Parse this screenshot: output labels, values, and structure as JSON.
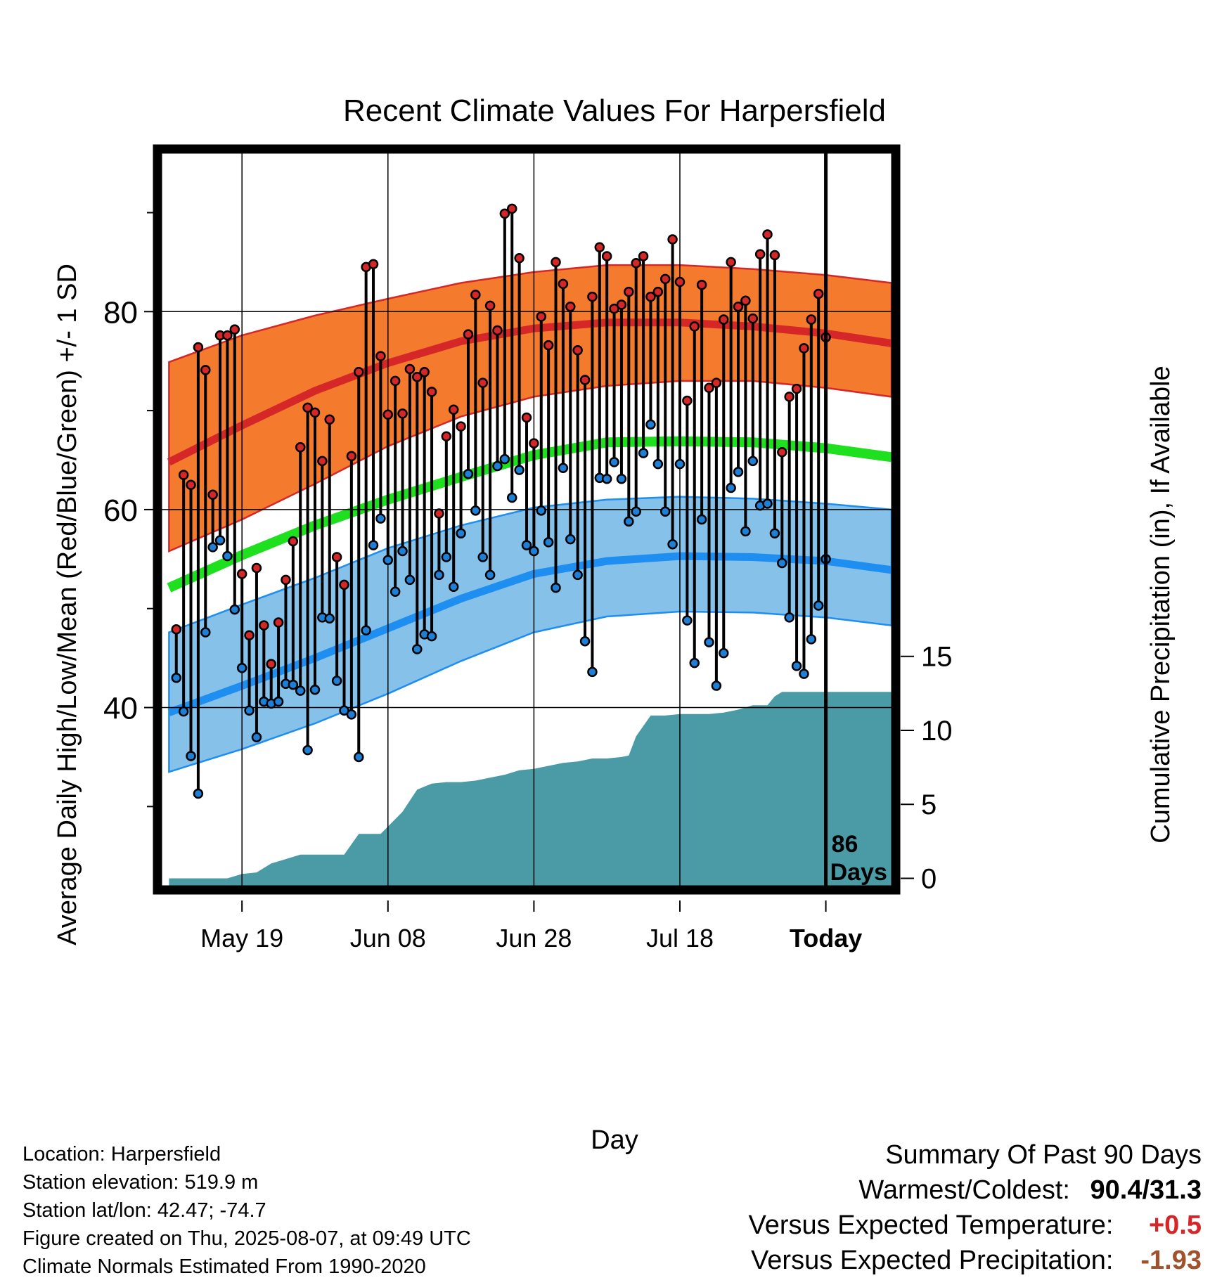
{
  "chart_data": {
    "type": "line",
    "title": "Recent Climate Values For Harpersfield",
    "xlabel": "Day",
    "ylabel": "Average Daily High/Low/Mean (Red/Blue/Green) +/- 1 SD",
    "y2label": "Cumulative Precipitation (in), If Available",
    "x_tick_labels": [
      "May 19",
      "Jun 08",
      "Jun 28",
      "Jul 18",
      "Today"
    ],
    "x_tick_days": [
      -80,
      -60,
      -40,
      -20,
      0
    ],
    "xlim": [
      -91,
      9
    ],
    "ylim": [
      22,
      96
    ],
    "y_ticks": [
      40,
      60,
      80
    ],
    "y_minor_ticks": [
      30,
      50,
      70,
      90
    ],
    "y2lim": [
      -0.5,
      49
    ],
    "y2_ticks": [
      0,
      5,
      10,
      15
    ],
    "grid": true,
    "today_label": [
      "86",
      "Days"
    ],
    "series": [
      {
        "name": "Normal High +/- 1 SD",
        "color": "#f47a2e",
        "x": [
          -90,
          -80,
          -70,
          -60,
          -50,
          -40,
          -30,
          -20,
          -10,
          0,
          9
        ],
        "mean": [
          64.8,
          68.5,
          72.0,
          74.8,
          77.0,
          78.3,
          78.9,
          78.9,
          78.5,
          77.8,
          76.8
        ],
        "upper": [
          74.9,
          77.6,
          79.6,
          81.3,
          82.9,
          84.0,
          84.7,
          84.7,
          84.3,
          83.7,
          82.9
        ],
        "lower": [
          55.8,
          59.0,
          62.6,
          66.4,
          69.4,
          71.4,
          72.5,
          73.0,
          73.0,
          72.3,
          71.4
        ]
      },
      {
        "name": "Normal Mean",
        "color": "#1ee01e",
        "x": [
          -90,
          -80,
          -70,
          -60,
          -50,
          -40,
          -30,
          -20,
          -10,
          0,
          9
        ],
        "mean": [
          52.1,
          55.4,
          58.4,
          61.0,
          63.3,
          65.5,
          66.8,
          66.9,
          66.8,
          66.2,
          65.3
        ]
      },
      {
        "name": "Normal Low +/- 1 SD",
        "color": "#1e8ef0",
        "x": [
          -90,
          -80,
          -70,
          -60,
          -50,
          -40,
          -30,
          -20,
          -10,
          0,
          9
        ],
        "mean": [
          39.5,
          42.2,
          45.0,
          48.0,
          51.0,
          53.5,
          54.8,
          55.3,
          55.2,
          54.8,
          53.9
        ],
        "upper": [
          47.6,
          50.4,
          53.1,
          56.1,
          58.4,
          60.2,
          61.0,
          61.3,
          61.1,
          60.6,
          60.0
        ],
        "lower": [
          33.5,
          35.8,
          38.4,
          41.4,
          44.7,
          47.6,
          49.2,
          49.7,
          49.6,
          49.1,
          48.3
        ]
      },
      {
        "name": "Cumulative Precipitation",
        "color": "#4a9ba5",
        "x": [
          -90,
          -82,
          -80,
          -78,
          -76,
          -74,
          -72,
          -70,
          -68,
          -66,
          -64,
          -62,
          -61,
          -60,
          -58,
          -56,
          -54,
          -52,
          -50,
          -48,
          -46,
          -44,
          -42,
          -40,
          -38,
          -36,
          -34,
          -32,
          -30,
          -28,
          -27,
          -26,
          -24,
          -22,
          -20,
          -18,
          -16,
          -14,
          -12,
          -10,
          -8,
          -7,
          -6,
          -4,
          -2,
          0,
          9
        ],
        "values": [
          0,
          0,
          0.3,
          0.4,
          1.0,
          1.3,
          1.6,
          1.6,
          1.6,
          1.6,
          3.0,
          3.0,
          3.0,
          3.5,
          4.5,
          6.0,
          6.4,
          6.5,
          6.5,
          6.6,
          6.8,
          7.0,
          7.3,
          7.4,
          7.6,
          7.8,
          7.9,
          8.1,
          8.1,
          8.2,
          8.3,
          9.6,
          11.0,
          11.0,
          11.1,
          11.1,
          11.1,
          11.2,
          11.4,
          11.7,
          11.7,
          12.3,
          12.6,
          12.6,
          12.6,
          12.6,
          12.6
        ]
      },
      {
        "name": "Observed High",
        "color": "#d62728",
        "values": [
          47.9,
          63.5,
          62.5,
          76.4,
          74.1,
          61.5,
          77.6,
          77.6,
          78.2,
          53.5,
          47.3,
          54.1,
          48.3,
          44.4,
          48.6,
          52.9,
          56.8,
          66.3,
          70.3,
          69.8,
          64.9,
          69.1,
          55.2,
          52.4,
          65.4,
          73.9,
          84.5,
          84.8,
          75.5,
          69.6,
          73.0,
          69.7,
          74.2,
          73.4,
          73.9,
          71.9,
          59.6,
          67.4,
          70.1,
          68.4,
          77.7,
          81.7,
          72.8,
          80.6,
          78.1,
          89.9,
          90.4,
          85.4,
          69.3,
          66.7,
          79.5,
          76.6,
          85.0,
          82.8,
          80.5,
          76.1,
          73.1,
          81.5,
          86.5,
          85.6,
          80.3,
          80.7,
          82.0,
          84.9,
          85.6,
          81.5,
          82.0,
          83.3,
          87.3,
          83.0,
          71.0,
          78.5,
          82.7,
          72.3,
          72.8,
          79.2,
          85.0,
          80.5,
          81.1,
          79.3,
          85.8,
          87.8,
          85.7,
          65.8,
          71.4,
          72.2,
          76.3,
          79.2,
          81.8,
          77.4
        ]
      },
      {
        "name": "Observed Low",
        "color": "#1e7fd6",
        "values": [
          43.0,
          39.6,
          35.1,
          31.3,
          47.6,
          56.2,
          56.9,
          55.3,
          49.9,
          44.0,
          39.7,
          37.0,
          40.6,
          40.4,
          40.6,
          42.4,
          42.3,
          41.7,
          35.7,
          41.8,
          49.1,
          49.0,
          42.7,
          39.7,
          39.3,
          35.0,
          47.8,
          56.4,
          59.1,
          54.9,
          51.7,
          55.8,
          52.9,
          45.9,
          47.4,
          47.2,
          53.4,
          55.2,
          52.2,
          57.6,
          63.6,
          59.9,
          55.2,
          53.4,
          64.4,
          65.1,
          61.2,
          64.0,
          56.4,
          55.8,
          59.9,
          56.7,
          52.1,
          64.2,
          57.0,
          53.4,
          46.7,
          43.6,
          63.2,
          63.1,
          64.8,
          63.1,
          58.8,
          59.8,
          65.7,
          68.6,
          64.6,
          59.8,
          56.5,
          64.6,
          48.8,
          44.5,
          59.0,
          46.6,
          42.2,
          45.5,
          62.2,
          63.8,
          57.8,
          64.9,
          60.4,
          60.6,
          57.6,
          54.6,
          49.1,
          44.2,
          43.4,
          46.9,
          50.3,
          55.0
        ]
      }
    ]
  },
  "info": {
    "location": "Location: Harpersfield",
    "elevation": "Station elevation: 519.9 m",
    "latlon": "Station lat/lon: 42.47; -74.7",
    "created": "Figure created on Thu, 2025-08-07, at 09:49 UTC",
    "normals": "Climate Normals Estimated From 1990-2020"
  },
  "summary": {
    "title": "Summary Of Past 90 Days",
    "warm_cold_label": "Warmest/Coldest:",
    "warm_cold_value": "90.4/31.3",
    "temp_label": "Versus Expected Temperature:",
    "temp_value": "+0.5",
    "precip_label": "Versus Expected Precipitation:",
    "precip_value": "-1.93",
    "temp_color": "#d62728",
    "precip_color": "#a0522d"
  }
}
